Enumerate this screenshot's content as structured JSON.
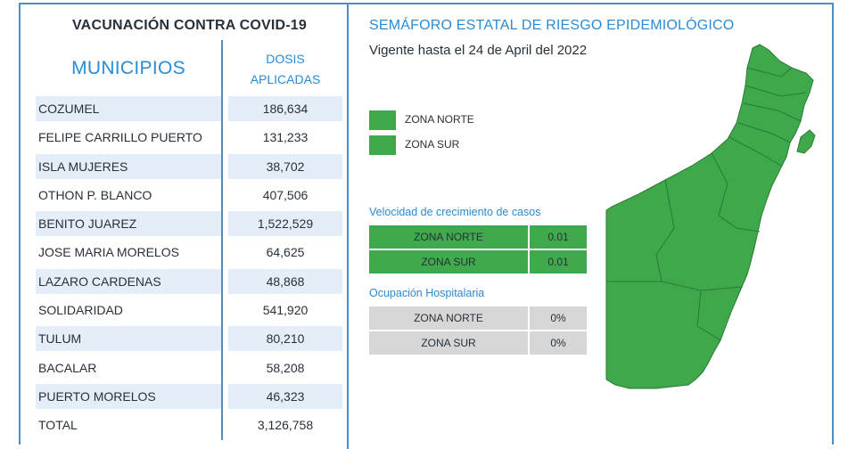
{
  "vaccination": {
    "title": "VACUNACIÓN CONTRA COVID-19",
    "col_municipios": "MUNICIPIOS",
    "col_dosis_line1": "DOSIS",
    "col_dosis_line2": "APLICADAS",
    "rows": [
      {
        "municipio": "COZUMEL",
        "dosis": "186,634"
      },
      {
        "municipio": "FELIPE CARRILLO PUERTO",
        "dosis": "131,233"
      },
      {
        "municipio": "ISLA MUJERES",
        "dosis": "38,702"
      },
      {
        "municipio": "OTHON P. BLANCO",
        "dosis": "407,506"
      },
      {
        "municipio": "BENITO JUAREZ",
        "dosis": "1,522,529"
      },
      {
        "municipio": "JOSE MARIA MORELOS",
        "dosis": "64,625"
      },
      {
        "municipio": "LAZARO CARDENAS",
        "dosis": "48,868"
      },
      {
        "municipio": "SOLIDARIDAD",
        "dosis": "541,920"
      },
      {
        "municipio": "TULUM",
        "dosis": "80,210"
      },
      {
        "municipio": "BACALAR",
        "dosis": "58,208"
      },
      {
        "municipio": "PUERTO MORELOS",
        "dosis": "46,323"
      },
      {
        "municipio": "TOTAL",
        "dosis": "3,126,758"
      }
    ]
  },
  "semaforo": {
    "title": "SEMÁFORO ESTATAL DE RIESGO EPIDEMIOLÓGICO",
    "vigente": "Vigente hasta el 24 de April del 2022",
    "legend": [
      {
        "label": "ZONA NORTE",
        "color": "#3ea84a"
      },
      {
        "label": "ZONA SUR",
        "color": "#3ea84a"
      }
    ],
    "velocidad": {
      "title": "Velocidad de crecimiento de casos",
      "rows": [
        {
          "zona": "ZONA NORTE",
          "valor": "0.01"
        },
        {
          "zona": "ZONA SUR",
          "valor": "0.01"
        }
      ]
    },
    "ocupacion": {
      "title": "Ocupación Hospitalaria",
      "rows": [
        {
          "zona": "ZONA NORTE",
          "valor": "0%"
        },
        {
          "zona": "ZONA SUR",
          "valor": "0%"
        }
      ]
    },
    "map_color": "#3ea84a"
  }
}
